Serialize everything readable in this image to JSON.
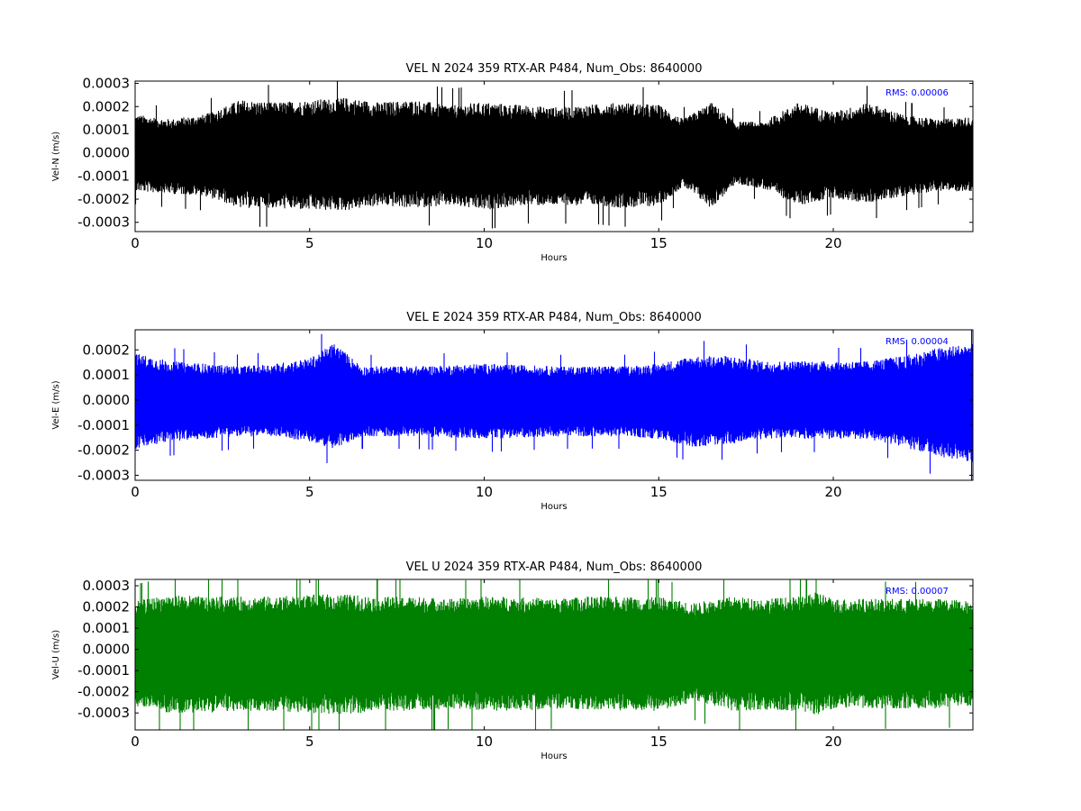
{
  "chart_data": [
    {
      "type": "line",
      "component": "N",
      "title": "VEL N 2024 359 RTX-AR  P484, Num_Obs: 8640000",
      "xlabel": "Hours",
      "ylabel": "Vel-N (m/s)",
      "xlim": [
        0,
        24
      ],
      "ylim": [
        -0.00034,
        0.00031
      ],
      "xticks": [
        0,
        5,
        10,
        15,
        20
      ],
      "xtick_labels": [
        "0",
        "5",
        "10",
        "15",
        "20"
      ],
      "yticks": [
        -0.0003,
        -0.0002,
        -0.0001,
        0.0,
        0.0001,
        0.0002,
        0.0003
      ],
      "ytick_labels": [
        "-0.0003",
        "-0.0002",
        "-0.0001",
        "0.0000",
        "0.0001",
        "0.0002",
        "0.0003"
      ],
      "color": "#000000",
      "rms_label": "RMS:  0.00006",
      "grid": false,
      "series": [
        {
          "x": [
            0,
            1,
            2,
            3,
            4,
            5,
            6,
            7,
            8,
            9,
            10,
            11,
            12,
            13,
            14,
            15,
            15.7,
            16.5,
            17.2,
            18,
            19,
            20,
            21,
            22,
            23,
            24
          ],
          "upper": [
            0.00016,
            0.00014,
            0.00016,
            0.00022,
            0.00021,
            0.00022,
            0.00023,
            0.00021,
            0.00022,
            0.0002,
            0.00021,
            0.0002,
            0.00019,
            0.0002,
            0.00021,
            0.0002,
            0.00014,
            0.00021,
            0.00013,
            0.00013,
            0.00021,
            0.00017,
            0.00021,
            0.00016,
            0.00014,
            0.00015
          ],
          "lower": [
            -0.00016,
            -0.00017,
            -0.00018,
            -0.00023,
            -0.00023,
            -0.00024,
            -0.00024,
            -0.00022,
            -0.00023,
            -0.00022,
            -0.00024,
            -0.00022,
            -0.00022,
            -0.00022,
            -0.00023,
            -0.00022,
            -0.00014,
            -0.00023,
            -0.00013,
            -0.00015,
            -0.00022,
            -0.00019,
            -0.00021,
            -0.00018,
            -0.00016,
            -0.00016
          ]
        }
      ]
    },
    {
      "type": "line",
      "component": "E",
      "title": "VEL E 2024 359 RTX-AR  P484, Num_Obs: 8640000",
      "xlabel": "Hours",
      "ylabel": "Vel-E (m/s)",
      "xlim": [
        0,
        24
      ],
      "ylim": [
        -0.00032,
        0.00028
      ],
      "xticks": [
        0,
        5,
        10,
        15,
        20
      ],
      "xtick_labels": [
        "0",
        "5",
        "10",
        "15",
        "20"
      ],
      "yticks": [
        -0.0003,
        -0.0002,
        -0.0001,
        0.0,
        0.0001,
        0.0002
      ],
      "ytick_labels": [
        "-0.0003",
        "-0.0002",
        "-0.0001",
        "0.0000",
        "0.0001",
        "0.0002"
      ],
      "color": "#0000ff",
      "rms_label": "RMS:  0.00004",
      "grid": false,
      "series": [
        {
          "x": [
            0,
            1,
            2,
            3,
            4,
            5,
            5.7,
            6.5,
            8,
            10,
            12,
            14,
            15,
            16,
            17,
            18,
            19,
            20,
            21,
            22,
            23,
            24
          ],
          "upper": [
            0.00018,
            0.00015,
            0.00014,
            0.00013,
            0.00014,
            0.00016,
            0.00022,
            0.00013,
            0.00013,
            0.00014,
            0.00013,
            0.00013,
            0.00014,
            0.00017,
            0.00017,
            0.00015,
            0.00015,
            0.00015,
            0.00015,
            0.00017,
            0.0002,
            0.00022
          ],
          "lower": [
            -0.00019,
            -0.00016,
            -0.00015,
            -0.00014,
            -0.00014,
            -0.00016,
            -0.00019,
            -0.00014,
            -0.00014,
            -0.00015,
            -0.00014,
            -0.00014,
            -0.00015,
            -0.00018,
            -0.00017,
            -0.00015,
            -0.00015,
            -0.00015,
            -0.00015,
            -0.00018,
            -0.00022,
            -0.00024
          ]
        }
      ]
    },
    {
      "type": "line",
      "component": "U",
      "title": "VEL U 2024 359 RTX-AR  P484, Num_Obs: 8640000",
      "xlabel": "Hours",
      "ylabel": "Vel-U (m/s)",
      "xlim": [
        0,
        24
      ],
      "ylim": [
        -0.00038,
        0.00033
      ],
      "xticks": [
        0,
        5,
        10,
        15,
        20
      ],
      "xtick_labels": [
        "0",
        "5",
        "10",
        "15",
        "20"
      ],
      "yticks": [
        -0.0003,
        -0.0002,
        -0.0001,
        0.0,
        0.0001,
        0.0002,
        0.0003
      ],
      "ytick_labels": [
        "-0.0003",
        "-0.0002",
        "-0.0001",
        "0.0000",
        "0.0001",
        "0.0002",
        "0.0003"
      ],
      "color": "#008000",
      "rms_label": "RMS:  0.00007",
      "grid": false,
      "series": [
        {
          "x": [
            0,
            1,
            2,
            3,
            4,
            5,
            6,
            7,
            8,
            9,
            10,
            11,
            12,
            13,
            14,
            15,
            16,
            17,
            18,
            19,
            19.5,
            20,
            21,
            22,
            23,
            24
          ],
          "upper": [
            0.00022,
            0.00025,
            0.00024,
            0.00024,
            0.00024,
            0.00025,
            0.00025,
            0.00024,
            0.00024,
            0.00023,
            0.00024,
            0.00024,
            0.00023,
            0.00024,
            0.00024,
            0.00024,
            0.00021,
            0.00024,
            0.00023,
            0.00024,
            0.00027,
            0.00023,
            0.00023,
            0.00023,
            0.00023,
            0.00022
          ],
          "lower": [
            -0.00026,
            -0.00029,
            -0.00029,
            -0.00028,
            -0.00028,
            -0.00029,
            -0.0003,
            -0.00028,
            -0.00028,
            -0.00027,
            -0.00028,
            -0.00028,
            -0.00027,
            -0.00028,
            -0.00028,
            -0.00028,
            -0.00024,
            -0.00028,
            -0.00028,
            -0.00028,
            -0.0003,
            -0.00027,
            -0.00027,
            -0.00027,
            -0.00027,
            -0.00026
          ]
        }
      ]
    }
  ]
}
